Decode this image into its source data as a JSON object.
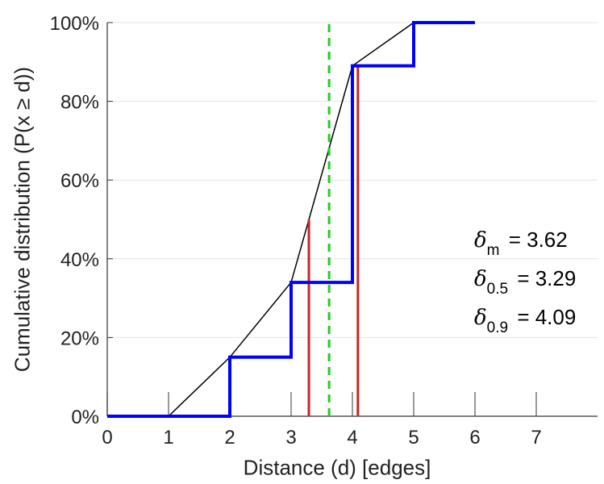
{
  "chart_data": {
    "type": "line",
    "xlabel": "Distance (d) [edges]",
    "ylabel": "Cumulative distribution (P(x ≥ d))",
    "xlim": [
      0,
      8
    ],
    "ylim": [
      0,
      100
    ],
    "x_ticks": [
      "0",
      "1",
      "2",
      "3",
      "4",
      "5",
      "6",
      "7"
    ],
    "y_ticks": [
      "0%",
      "20%",
      "40%",
      "60%",
      "80%",
      "100%"
    ],
    "grid": "horizontal",
    "series": [
      {
        "style": "step",
        "color": "#0000ff",
        "x": [
          0,
          2,
          2,
          3,
          3,
          4,
          4,
          5,
          5,
          6
        ],
        "y": [
          0,
          0,
          15,
          15,
          34,
          34,
          89,
          89,
          100,
          100
        ]
      },
      {
        "style": "line",
        "color": "#000000",
        "x": [
          1,
          2,
          3,
          4,
          5
        ],
        "y": [
          0,
          15,
          34,
          89,
          100
        ]
      }
    ],
    "reference_lines": [
      {
        "label": "δm",
        "x": 3.62,
        "y_top": 100,
        "color": "#22cc22",
        "style": "dashed"
      },
      {
        "label": "δ0.5",
        "x": 3.29,
        "y_top": 50,
        "color": "#cc2222",
        "style": "solid"
      },
      {
        "label": "δ0.9",
        "x": 4.09,
        "y_top": 89,
        "color": "#cc2222",
        "style": "solid"
      }
    ],
    "annotations": [
      {
        "symbol": "δ",
        "sub": "m",
        "text": "= 3.62"
      },
      {
        "symbol": "δ",
        "sub": "0.5",
        "text": "= 3.29"
      },
      {
        "symbol": "δ",
        "sub": "0.9",
        "text": "= 4.09"
      }
    ]
  }
}
